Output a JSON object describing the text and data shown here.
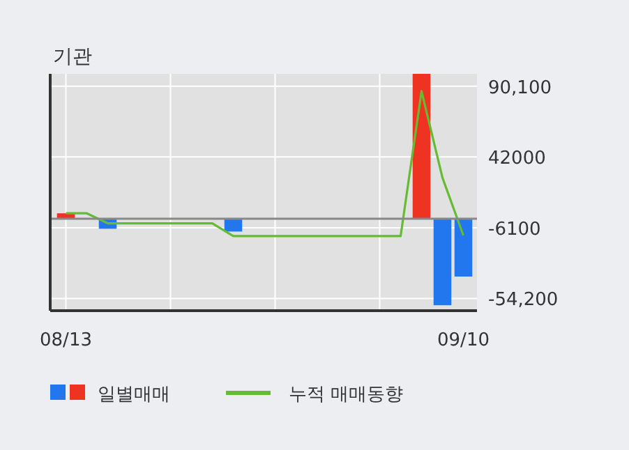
{
  "chart_data": {
    "type": "bar",
    "title": "기관",
    "categories": [
      "08/13",
      null,
      null,
      null,
      null,
      null,
      null,
      null,
      null,
      null,
      null,
      null,
      null,
      null,
      null,
      null,
      null,
      null,
      null,
      "09/10"
    ],
    "series": [
      {
        "name": "일별매매",
        "values": [
          3700,
          0,
          -6800,
          0,
          0,
          0,
          0,
          0,
          -8700,
          0,
          0,
          0,
          0,
          0,
          0,
          0,
          0,
          98500,
          -58800,
          -39300
        ],
        "colors": [
          "#ee3322",
          "#ee3322",
          "#2277ee",
          "#ee3322",
          "#ee3322",
          "#ee3322",
          "#ee3322",
          "#ee3322",
          "#2277ee",
          "#ee3322",
          "#ee3322",
          "#ee3322",
          "#ee3322",
          "#ee3322",
          "#ee3322",
          "#ee3322",
          "#ee3322",
          "#ee3322",
          "#2277ee",
          "#2277ee"
        ]
      },
      {
        "name": "누적 매매동향",
        "type": "line",
        "color": "#66bb33",
        "values": [
          3700,
          3700,
          -3100,
          -3100,
          -3100,
          -3100,
          -3100,
          -3100,
          -11800,
          -11800,
          -11800,
          -11800,
          -11800,
          -11800,
          -11800,
          -11800,
          -11800,
          86700,
          27900,
          -11400
        ]
      }
    ],
    "ylim": [
      -62500,
      98500
    ],
    "yticks": [
      {
        "value": 90100,
        "label": "90,100"
      },
      42000,
      -6100,
      {
        "value": -54200,
        "label": "-54,200"
      }
    ],
    "grid": true,
    "legend": "bottom left"
  }
}
